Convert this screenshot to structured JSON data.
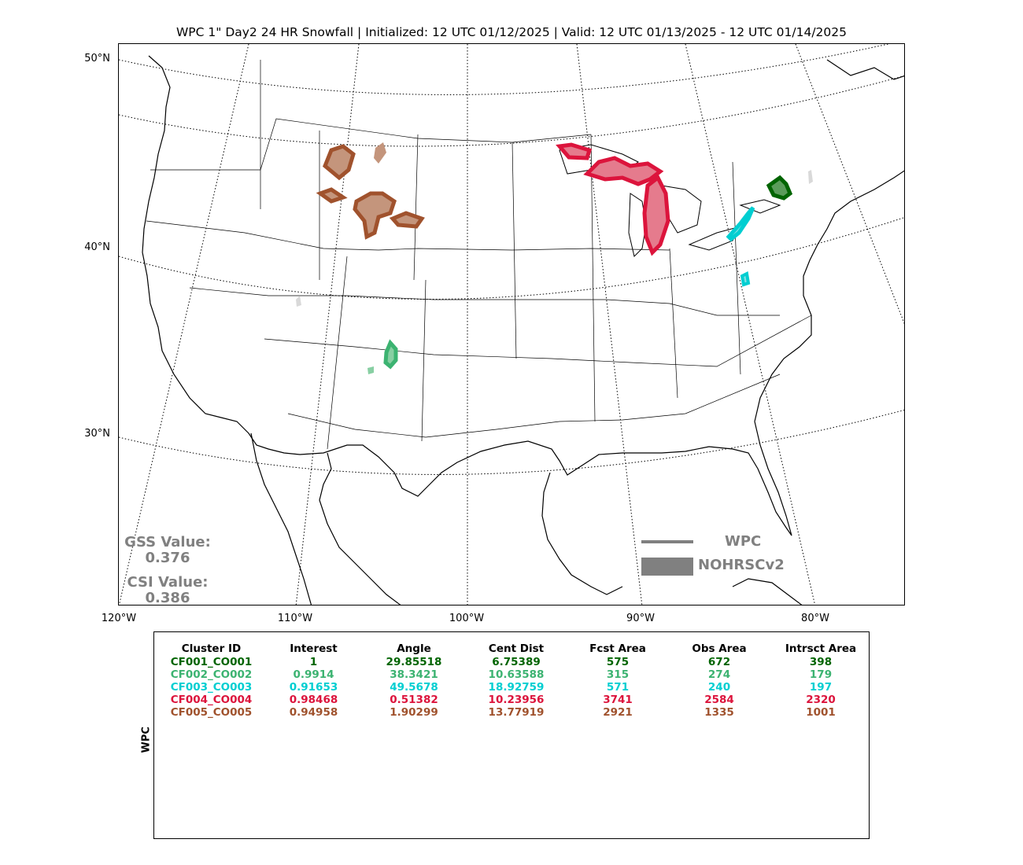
{
  "title": "WPC 1\" Day2 24 HR Snowfall | Initialized: 12 UTC 01/12/2025 | Valid: 12 UTC 01/13/2025 - 12 UTC 01/14/2025",
  "lat_labels": [
    "50°N",
    "40°N",
    "30°N"
  ],
  "lon_labels": [
    "120°W",
    "110°W",
    "100°W",
    "90°W",
    "80°W"
  ],
  "scores": {
    "gss_label": "GSS Value:",
    "gss_value": "0.376",
    "csi_label": "CSI Value:",
    "csi_value": "0.386"
  },
  "legend": {
    "line_label": "WPC",
    "patch_label": "NOHRSCv2",
    "color": "#808080"
  },
  "table": {
    "side_label": "WPC",
    "headers": [
      "Cluster ID",
      "Interest",
      "Angle",
      "Cent Dist",
      "Fcst Area",
      "Obs Area",
      "Intrsct Area"
    ],
    "rows": [
      {
        "color": "#006400",
        "cells": [
          "CF001_CO001",
          "1",
          "29.85518",
          "6.75389",
          "575",
          "672",
          "398"
        ]
      },
      {
        "color": "#3cb371",
        "cells": [
          "CF002_CO002",
          "0.9914",
          "38.3421",
          "10.63588",
          "315",
          "274",
          "179"
        ]
      },
      {
        "color": "#00ced1",
        "cells": [
          "CF003_CO003",
          "0.91653",
          "49.5678",
          "18.92759",
          "571",
          "240",
          "197"
        ]
      },
      {
        "color": "#dc143c",
        "cells": [
          "CF004_CO004",
          "0.98468",
          "0.51382",
          "10.23956",
          "3741",
          "2584",
          "2320"
        ]
      },
      {
        "color": "#a0522d",
        "cells": [
          "CF005_CO005",
          "0.94958",
          "1.90299",
          "13.77919",
          "2921",
          "1335",
          "1001"
        ]
      }
    ]
  }
}
